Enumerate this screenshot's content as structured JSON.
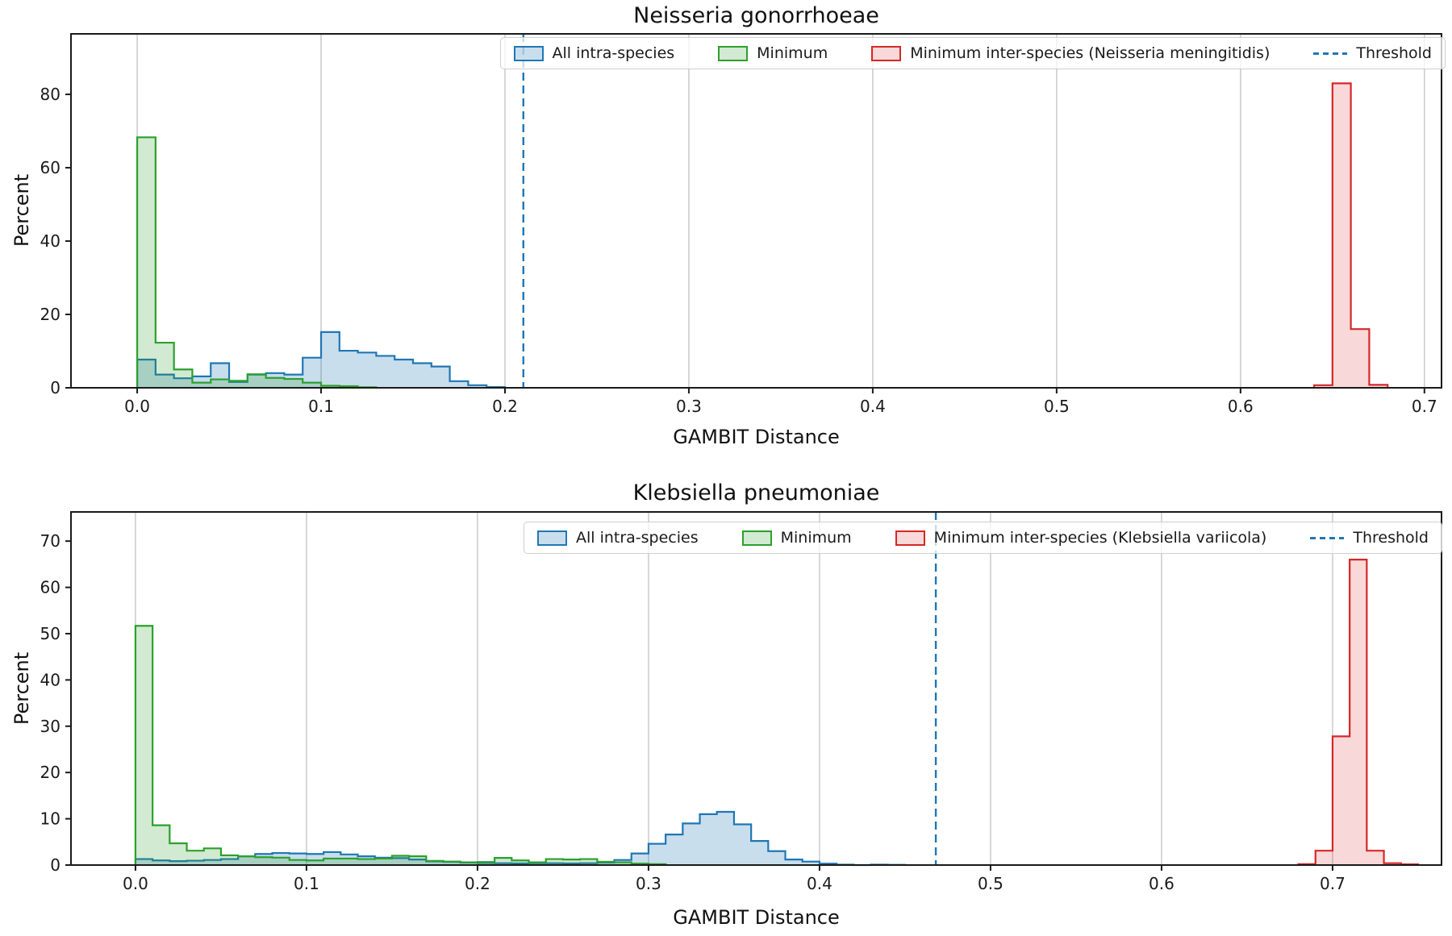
{
  "chart_data": [
    {
      "type": "area",
      "subtype": "step-histogram",
      "title": "Neisseria gonorrhoeae",
      "xlabel": "GAMBIT Distance",
      "ylabel": "Percent",
      "xlim": [
        -0.036,
        0.7093
      ],
      "ylim": [
        0,
        96.5
      ],
      "xticks": [
        0.0,
        0.1,
        0.2,
        0.3,
        0.4,
        0.5,
        0.6,
        0.7
      ],
      "xtick_labels": [
        "0.0",
        "0.1",
        "0.2",
        "0.3",
        "0.4",
        "0.5",
        "0.6",
        "0.7"
      ],
      "yticks": [
        0,
        20,
        40,
        60,
        80
      ],
      "ytick_labels": [
        "0",
        "20",
        "40",
        "60",
        "80"
      ],
      "grid": "vertical-only",
      "grid_color": "#c6c6c6",
      "legend_position": "upper right",
      "bin_width": 0.01,
      "threshold": {
        "label": "Threshold",
        "value": 0.21,
        "color": "#1f77b4",
        "style": "dashed"
      },
      "series": [
        {
          "name": "All intra-species",
          "edge_color": "#1f77b4",
          "fill_color": "rgba(31,119,180,0.24)",
          "bin_start": 0.0,
          "percent": [
            7.7,
            3.6,
            2.6,
            3.1,
            6.7,
            1.6,
            3.6,
            4.0,
            3.6,
            8.2,
            15.2,
            10.1,
            9.6,
            8.7,
            7.7,
            6.7,
            5.8,
            1.8,
            0.7,
            0.2
          ]
        },
        {
          "name": "Minimum",
          "edge_color": "#2ca02c",
          "fill_color": "rgba(44,160,44,0.22)",
          "bin_start": 0.0,
          "percent": [
            68.3,
            12.3,
            5.0,
            1.4,
            2.3,
            1.9,
            3.7,
            2.7,
            2.4,
            1.4,
            0.55,
            0.45,
            0.15
          ]
        },
        {
          "name": "Minimum inter-species (Neisseria meningitidis)",
          "edge_color": "#d62728",
          "fill_color": "rgba(214,39,40,0.18)",
          "bin_start": 0.64,
          "percent": [
            0.7,
            83,
            16,
            0.8
          ]
        }
      ]
    },
    {
      "type": "area",
      "subtype": "step-histogram",
      "title": "Klebsiella pneumoniae",
      "xlabel": "GAMBIT Distance",
      "ylabel": "Percent",
      "xlim": [
        -0.0377,
        0.7637
      ],
      "ylim": [
        0,
        76.3
      ],
      "xticks": [
        0.0,
        0.1,
        0.2,
        0.3,
        0.4,
        0.5,
        0.6,
        0.7
      ],
      "xtick_labels": [
        "0.0",
        "0.1",
        "0.2",
        "0.3",
        "0.4",
        "0.5",
        "0.6",
        "0.7"
      ],
      "yticks": [
        0,
        10,
        20,
        30,
        40,
        50,
        60,
        70
      ],
      "ytick_labels": [
        "0",
        "10",
        "20",
        "30",
        "40",
        "50",
        "60",
        "70"
      ],
      "grid": "vertical-only",
      "grid_color": "#c6c6c6",
      "legend_position": "upper right",
      "bin_width": 0.01,
      "threshold": {
        "label": "Threshold",
        "value": 0.468,
        "color": "#1f77b4",
        "style": "dashed"
      },
      "series": [
        {
          "name": "All intra-species",
          "edge_color": "#1f77b4",
          "fill_color": "rgba(31,119,180,0.24)",
          "bin_start": 0.0,
          "percent": [
            1.3,
            1.0,
            0.85,
            0.95,
            1.1,
            1.3,
            1.9,
            2.4,
            2.6,
            2.5,
            2.4,
            2.8,
            2.3,
            1.9,
            1.6,
            1.5,
            1.2,
            0.8,
            0.7,
            0.55,
            0.45,
            0.4,
            0.35,
            0.4,
            0.4,
            0.35,
            0.4,
            0.55,
            1.1,
            2.5,
            4.6,
            6.6,
            9.0,
            11.0,
            11.5,
            8.8,
            5.2,
            3.0,
            1.2,
            0.75,
            0.3,
            0.1,
            0.0,
            0.1,
            0.05
          ]
        },
        {
          "name": "Minimum",
          "edge_color": "#2ca02c",
          "fill_color": "rgba(44,160,44,0.22)",
          "bin_start": 0.0,
          "percent": [
            51.7,
            8.6,
            4.7,
            3.1,
            3.6,
            2.1,
            1.9,
            1.7,
            1.6,
            1.1,
            1.0,
            1.4,
            1.4,
            1.3,
            1.4,
            2.0,
            1.9,
            0.9,
            0.75,
            0.6,
            0.65,
            1.55,
            1.0,
            0.6,
            1.3,
            1.2,
            1.3,
            0.7,
            0.6,
            0.3,
            0.2
          ]
        },
        {
          "name": "Minimum inter-species (Klebsiella variicola)",
          "edge_color": "#d62728",
          "fill_color": "rgba(214,39,40,0.18)",
          "bin_start": 0.68,
          "percent": [
            0.2,
            3.1,
            27.8,
            66,
            3.1,
            0.4,
            0.15
          ]
        }
      ]
    }
  ]
}
